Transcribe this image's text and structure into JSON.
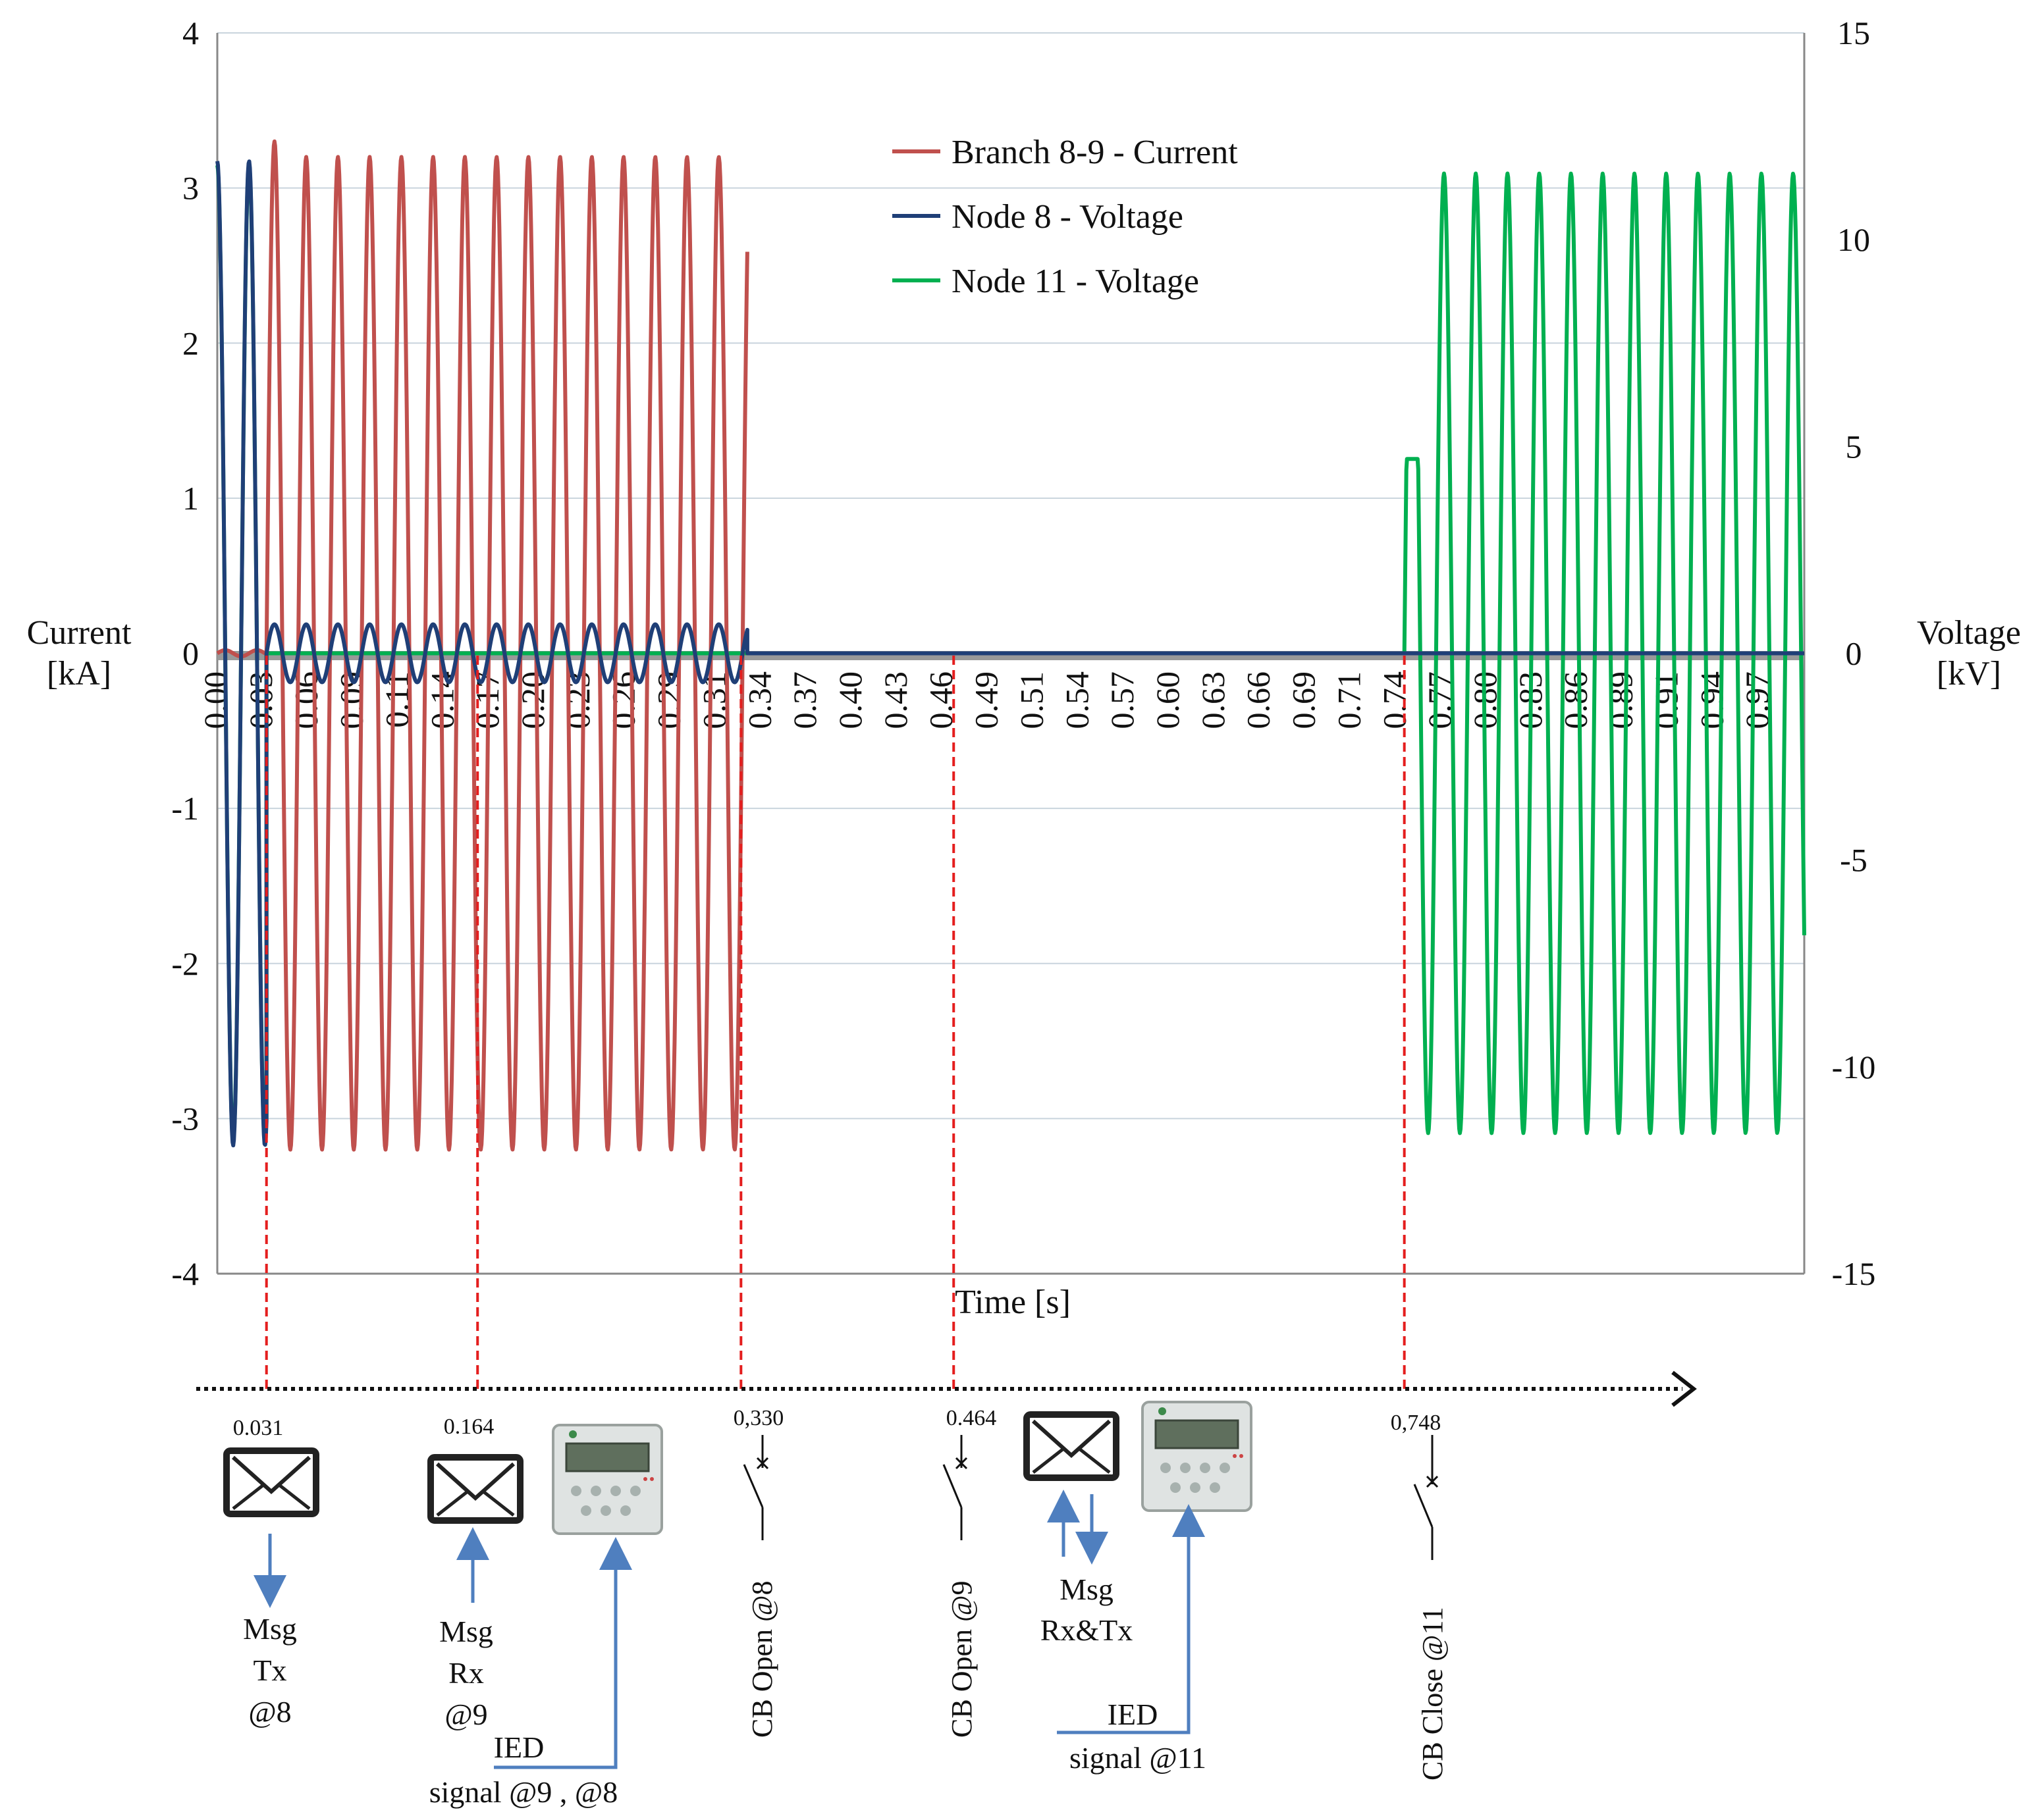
{
  "chart_data": {
    "type": "line",
    "title": "",
    "xlabel": "Time [s]",
    "ylabel_left": [
      "Current",
      "[kA]"
    ],
    "ylabel_right": [
      "Voltage",
      "[kV]"
    ],
    "xlim": [
      0,
      1.0
    ],
    "ylim_left": [
      -4,
      4
    ],
    "ylim_right": [
      -15,
      15
    ],
    "left_ticks": [
      "4",
      "3",
      "2",
      "1",
      "0",
      "-1",
      "-2",
      "-3",
      "-4"
    ],
    "right_ticks": [
      "15",
      "10",
      "5",
      "0",
      "-5",
      "-10",
      "-15"
    ],
    "x_tick_labels": [
      "0.00",
      "0.03",
      "0.06",
      "0.09",
      "0.11",
      "0.14",
      "0.17",
      "0.20",
      "0.23",
      "0.26",
      "0.29",
      "0.31",
      "0.34",
      "0.37",
      "0.40",
      "0.43",
      "0.46",
      "0.49",
      "0.51",
      "0.54",
      "0.57",
      "0.60",
      "0.63",
      "0.66",
      "0.69",
      "0.71",
      "0.74",
      "0.77",
      "0.80",
      "0.83",
      "0.86",
      "0.89",
      "0.91",
      "0.94",
      "0.97"
    ],
    "grid": true,
    "legend_position": "top-center",
    "series": [
      {
        "name": "Branch 8-9 - Current",
        "color": "#c0504d",
        "axis": "left",
        "unit": "kA",
        "segments": [
          {
            "from": 0.0,
            "to": 0.031,
            "waveform": "near-zero"
          },
          {
            "from": 0.031,
            "to": 0.334,
            "waveform": "sine",
            "frequency_hz": 50,
            "amplitude": 3.2,
            "peak_start": 3.3
          }
        ]
      },
      {
        "name": "Node 8 - Voltage",
        "color": "#1f3f77",
        "axis": "right",
        "unit": "kV",
        "segments": [
          {
            "from": 0.0,
            "to": 0.031,
            "waveform": "sine",
            "frequency_hz": 50,
            "amplitude": 11.9
          },
          {
            "from": 0.031,
            "to": 0.334,
            "waveform": "sine",
            "frequency_hz": 50,
            "amplitude": 0.7
          },
          {
            "from": 0.334,
            "to": 1.0,
            "waveform": "zero"
          }
        ]
      },
      {
        "name": "Node 11 - Voltage",
        "color": "#00b050",
        "axis": "right",
        "unit": "kV",
        "segments": [
          {
            "from": 0.0,
            "to": 0.031,
            "waveform": "sine",
            "frequency_hz": 50,
            "amplitude": 11.8
          },
          {
            "from": 0.031,
            "to": 0.748,
            "waveform": "zero"
          },
          {
            "from": 0.748,
            "to": 1.0,
            "waveform": "sine",
            "frequency_hz": 50,
            "amplitude": 11.6,
            "first_peak": 4.7
          }
        ]
      }
    ],
    "annotations": [
      {
        "time": 0.031,
        "time_label": "0.031",
        "icon": "envelope",
        "arrow": "down",
        "label": [
          "Msg",
          "Tx",
          "@8"
        ]
      },
      {
        "time": 0.164,
        "time_label": "0.164",
        "icon": "envelope",
        "arrow": "up",
        "label": [
          "Msg",
          "Rx",
          "@9"
        ],
        "ied_label": [
          "IED",
          "signal @9 , @8"
        ]
      },
      {
        "time": 0.33,
        "time_label": "0,330",
        "icon": "breaker",
        "label": [
          "CB Open @8"
        ]
      },
      {
        "time": 0.464,
        "time_label": "0.464",
        "icon": "breaker",
        "label": [
          "CB Open @9"
        ],
        "msg_label": [
          "Msg",
          "Rx&Tx"
        ],
        "ied_label": [
          "IED",
          "signal @11"
        ]
      },
      {
        "time": 0.748,
        "time_label": "0,748",
        "icon": "breaker",
        "label": [
          "CB Close @11"
        ]
      }
    ]
  }
}
